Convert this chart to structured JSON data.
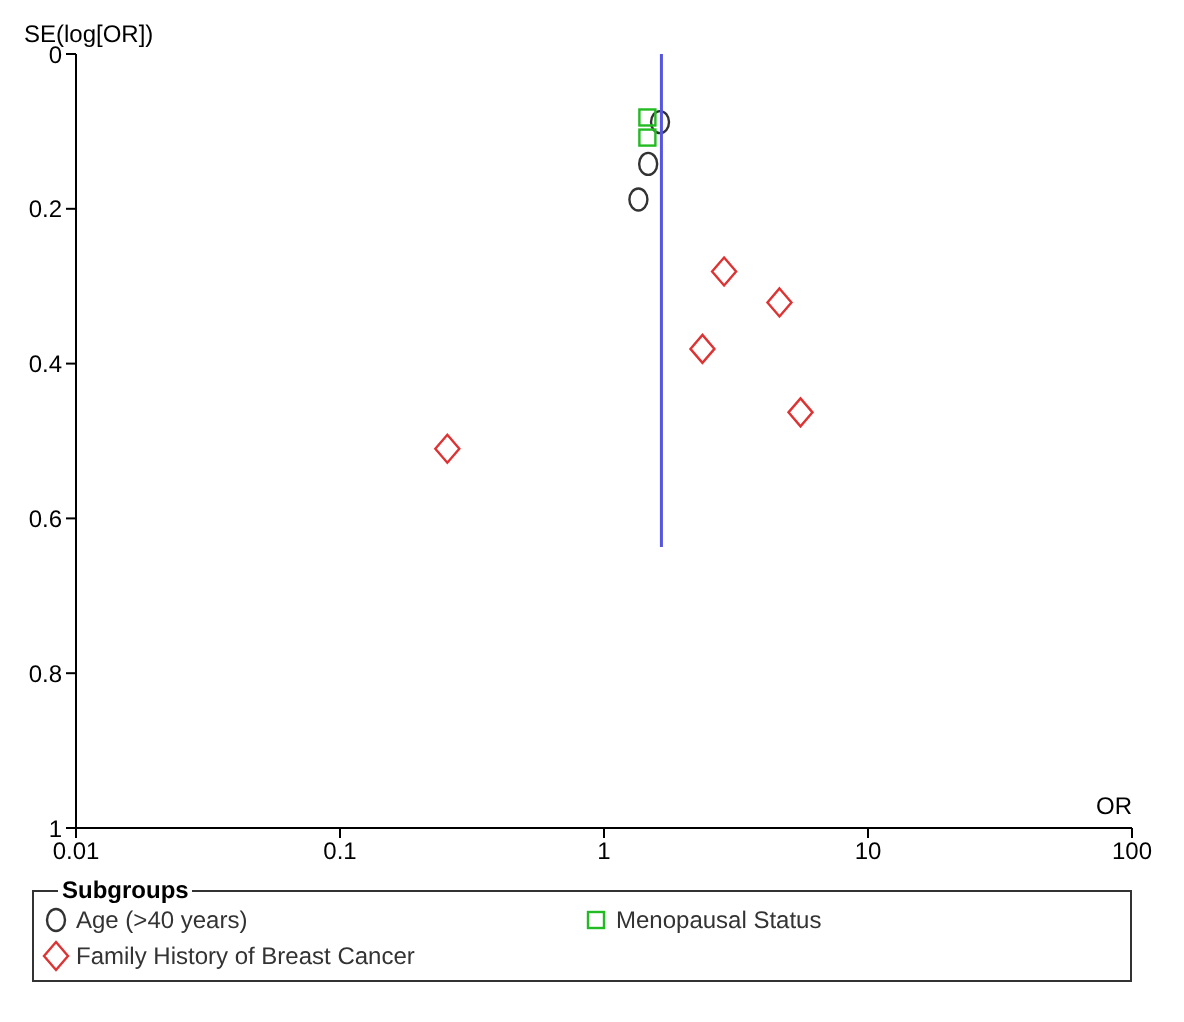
{
  "chart_data": {
    "type": "scatter",
    "xlabel": "OR",
    "ylabel": "SE(log[OR])",
    "legend_title": "Subgroups",
    "legend": "bottom",
    "log": "x",
    "xlim": [
      0.01,
      100
    ],
    "xticks": [
      0.01,
      0.1,
      1,
      10,
      100
    ],
    "ylim": [
      1,
      0
    ],
    "yticks": [
      0,
      0.2,
      0.4,
      0.6,
      0.8,
      1
    ],
    "series": [
      {
        "name": "Age (>40 years)",
        "color": "#333333",
        "marker": "circle",
        "x": [
          1.63,
          1.47,
          1.35
        ],
        "values": [
          0.088,
          0.142,
          0.188
        ]
      },
      {
        "name": "Menopausal Status",
        "color": "#22bb22",
        "marker": "square",
        "x": [
          1.46,
          1.46
        ],
        "values": [
          0.082,
          0.108
        ]
      },
      {
        "name": "Family History of Breast Cancer",
        "color": "#dd3333",
        "marker": "diamond",
        "x": [
          2.85,
          4.62,
          2.36,
          5.55,
          0.255
        ],
        "values": [
          0.281,
          0.321,
          0.381,
          0.463,
          0.51
        ]
      },
      {
        "type": "line",
        "color": "#5555dd",
        "marker": "none",
        "x": [
          1.65,
          1.65
        ],
        "values": [
          0,
          0.637
        ]
      }
    ]
  }
}
